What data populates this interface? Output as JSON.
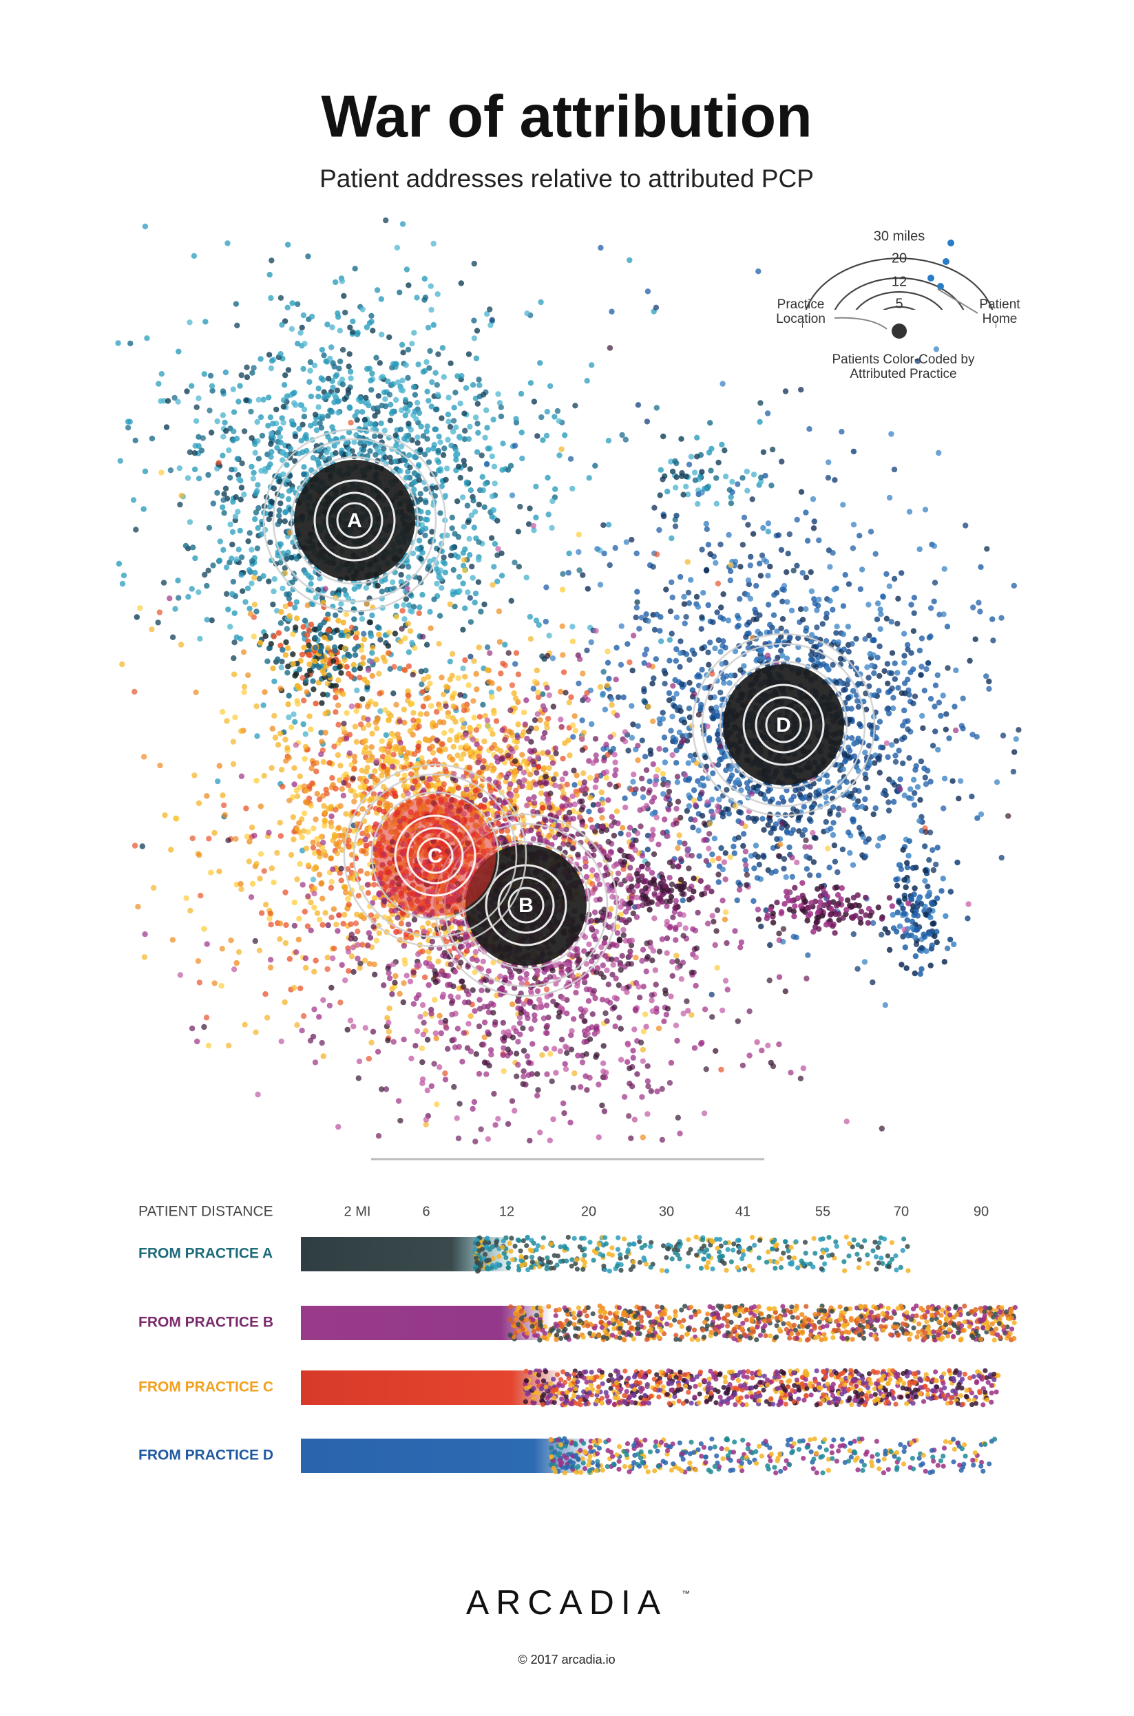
{
  "header": {
    "title": "War of attribution",
    "subtitle": "Patient addresses relative to attributed PCP"
  },
  "legend": {
    "rings": [
      "30 miles",
      20,
      12,
      5
    ],
    "practice": [
      "Practice",
      "Location"
    ],
    "patient": [
      "Patient",
      "Home"
    ],
    "caption": [
      "Patients Color-Coded by",
      "Attributed Practice"
    ]
  },
  "map": {
    "practices": [
      "A",
      "B",
      "C",
      "D"
    ]
  },
  "distance": {
    "label": "PATIENT DISTANCE",
    "ticks": [
      "2 MI",
      6,
      12,
      20,
      30,
      41,
      55,
      70,
      90
    ],
    "rows": [
      "FROM PRACTICE A",
      "FROM PRACTICE B",
      "FROM PRACTICE C",
      "FROM PRACTICE D"
    ]
  },
  "footer": {
    "brand": "ARCADIA",
    "trademark": "™",
    "copyright": "© 2017 arcadia.io"
  }
}
